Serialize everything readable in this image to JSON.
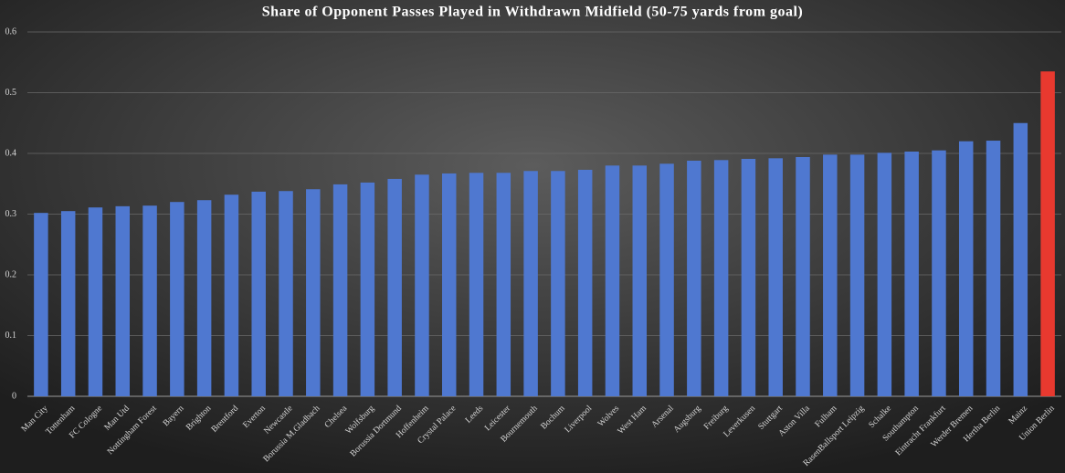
{
  "chart_data": {
    "type": "bar",
    "title": "Share of Opponent Passes Played in Withdrawn Midfield (50-75 yards from goal)",
    "categories": [
      "Man City",
      "Tottenham",
      "FC Cologne",
      "Man Utd",
      "Nottingham Forest",
      "Bayern",
      "Brighton",
      "Brentford",
      "Everton",
      "Newcastle",
      "Borussia M.Gladbach",
      "Chelsea",
      "Wolfsburg",
      "Borussia Dortmund",
      "Hoffenheim",
      "Crystal Palace",
      "Leeds",
      "Leicester",
      "Bournemouth",
      "Bochum",
      "Liverpool",
      "Wolves",
      "West Ham",
      "Arsenal",
      "Augsburg",
      "Freiburg",
      "Leverkusen",
      "Stuttgart",
      "Aston Villa",
      "Fulham",
      "RasenBallsport Leipzig",
      "Schalke",
      "Southampton",
      "Eintracht Frankfurt",
      "Werder Bremen",
      "Hertha Berlin",
      "Mainz",
      "Union Berlin"
    ],
    "values": [
      0.302,
      0.305,
      0.311,
      0.313,
      0.314,
      0.32,
      0.323,
      0.332,
      0.337,
      0.338,
      0.341,
      0.349,
      0.352,
      0.358,
      0.365,
      0.367,
      0.368,
      0.368,
      0.371,
      0.371,
      0.373,
      0.38,
      0.38,
      0.383,
      0.388,
      0.389,
      0.391,
      0.392,
      0.394,
      0.398,
      0.398,
      0.401,
      0.403,
      0.405,
      0.42,
      0.421,
      0.45,
      0.535
    ],
    "colors": [
      "#4f78d0",
      "#4f78d0",
      "#4f78d0",
      "#4f78d0",
      "#4f78d0",
      "#4f78d0",
      "#4f78d0",
      "#4f78d0",
      "#4f78d0",
      "#4f78d0",
      "#4f78d0",
      "#4f78d0",
      "#4f78d0",
      "#4f78d0",
      "#4f78d0",
      "#4f78d0",
      "#4f78d0",
      "#4f78d0",
      "#4f78d0",
      "#4f78d0",
      "#4f78d0",
      "#4f78d0",
      "#4f78d0",
      "#4f78d0",
      "#4f78d0",
      "#4f78d0",
      "#4f78d0",
      "#4f78d0",
      "#4f78d0",
      "#4f78d0",
      "#4f78d0",
      "#4f78d0",
      "#4f78d0",
      "#4f78d0",
      "#4f78d0",
      "#4f78d0",
      "#4f78d0",
      "#e8392f"
    ],
    "ylim": [
      0,
      0.6
    ],
    "yticks": [
      {
        "value": 0,
        "label": "0"
      },
      0.1,
      0.2,
      0.3,
      0.4,
      0.5,
      0.6
    ],
    "grid": true
  }
}
